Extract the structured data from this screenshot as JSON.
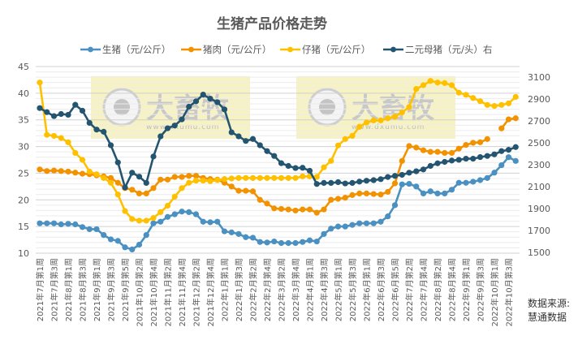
{
  "chart_data": {
    "type": "line",
    "title": "生猪产品价格走势",
    "source_label": "数据来源:",
    "source_name": "慧通数据",
    "watermark": {
      "name": "大畜牧",
      "url": "www.dxumu.com"
    },
    "x_tick_labels": [
      "2021年7月第1周",
      "2021年7月第3周",
      "2021年8月第1周",
      "2021年8月第3周",
      "2021年9月第1周",
      "2021年9月第3周",
      "2021年9月第5周",
      "2021年10月第2周",
      "2021年10月第4周",
      "2021年11月第2周",
      "2021年11月第4周",
      "2021年12月第2周",
      "2021年12月第4周",
      "2022年1月第1周",
      "2022年1月第3周",
      "2022年2月第2周",
      "2022年2月第4周",
      "2022年3月第2周",
      "2022年3月第4周",
      "2022年4月第1周",
      "2022年4月第3周",
      "2022年5月第1周",
      "2022年5月第3周",
      "2022年6月第1周",
      "2022年6月第3周",
      "2022年6月第5周",
      "2022年7月第2周",
      "2022年7月第4周",
      "2022年8月第2周",
      "2022年8月第4周",
      "2022年9月第1周",
      "2022年9月第3周",
      "2022年10月第1周",
      "2022年10月第3周"
    ],
    "y_left": {
      "min": 10,
      "max": 45,
      "step": 5
    },
    "y_right": {
      "min": 1500,
      "max": 3100,
      "step": 200
    },
    "grid": true,
    "legend_position": "top",
    "series": [
      {
        "name": "生猪（元/公斤）",
        "axis": "left",
        "color": "#4a90c0",
        "values": [
          15.6,
          15.6,
          15.6,
          15.4,
          15.5,
          15.4,
          14.9,
          14.5,
          14.5,
          13.4,
          12.6,
          12.3,
          11.1,
          10.7,
          11.6,
          13.4,
          15.6,
          15.9,
          16.8,
          17.3,
          17.8,
          17.7,
          17.3,
          15.9,
          15.8,
          15.9,
          14.1,
          13.9,
          13.6,
          13.0,
          12.9,
          12.1,
          12.0,
          12.2,
          11.9,
          11.9,
          11.9,
          12.1,
          12.4,
          12.2,
          13.6,
          14.6,
          15.0,
          15.0,
          15.3,
          15.6,
          15.6,
          15.6,
          15.9,
          16.9,
          19.0,
          22.9,
          23.0,
          22.5,
          21.2,
          21.6,
          21.2,
          21.2,
          21.9,
          23.2,
          23.2,
          23.4,
          23.7,
          24.1,
          25.1,
          26.5,
          28.0,
          27.3
        ]
      },
      {
        "name": "猪肉（元/公斤）",
        "axis": "left",
        "color": "#f39200",
        "values": [
          25.7,
          25.4,
          25.5,
          25.4,
          25.3,
          25.1,
          24.9,
          24.8,
          24.6,
          24.4,
          24.1,
          23.2,
          22.2,
          21.9,
          21.2,
          21.2,
          22.2,
          23.8,
          23.8,
          24.3,
          24.3,
          24.5,
          24.5,
          24.1,
          23.9,
          23.8,
          23.2,
          22.5,
          21.7,
          21.7,
          21.6,
          20.0,
          19.3,
          18.4,
          18.3,
          18.2,
          18.0,
          18.2,
          18.2,
          17.6,
          18.2,
          20.0,
          20.2,
          20.4,
          20.9,
          21.2,
          21.2,
          21.1,
          21.0,
          21.5,
          23.1,
          27.3,
          30.1,
          29.8,
          29.3,
          29.0,
          29.0,
          28.8,
          28.8,
          29.6,
          30.3,
          30.7,
          30.8,
          31.4,
          null,
          33.4,
          35.1,
          35.3
        ]
      },
      {
        "name": "仔猪（元/公斤）",
        "axis": "left",
        "color": "#ffc000",
        "values": [
          42.0,
          32.2,
          32.0,
          31.6,
          30.8,
          28.8,
          27.5,
          25.3,
          24.8,
          24.1,
          23.2,
          21.0,
          17.9,
          16.4,
          16.1,
          16.1,
          16.6,
          17.7,
          18.9,
          20.6,
          22.2,
          23.2,
          23.6,
          23.6,
          23.5,
          23.7,
          23.9,
          24.0,
          24.1,
          24.1,
          24.1,
          24.1,
          24.1,
          24.1,
          24.1,
          24.1,
          24.1,
          24.4,
          24.4,
          24.3,
          26.1,
          27.3,
          30.2,
          31.4,
          32.0,
          33.7,
          34.5,
          34.9,
          34.9,
          35.3,
          35.6,
          36.4,
          37.4,
          40.8,
          41.5,
          42.3,
          42.0,
          41.9,
          41.5,
          40.1,
          39.7,
          39.1,
          38.5,
          37.8,
          37.6,
          37.8,
          38.1,
          39.3
        ]
      },
      {
        "name": "二元母猪（元/头）右",
        "axis": "right",
        "color": "#245570",
        "values": [
          2817,
          2780,
          2744,
          2763,
          2756,
          2847,
          2793,
          2682,
          2621,
          2601,
          2478,
          2321,
          2092,
          2227,
          2191,
          2134,
          2375,
          2559,
          2633,
          2658,
          2714,
          2830,
          2879,
          2940,
          2903,
          2871,
          2805,
          2596,
          2559,
          2517,
          2535,
          2478,
          2424,
          2380,
          2314,
          2289,
          2270,
          2272,
          2245,
          2124,
          2134,
          2134,
          2141,
          2129,
          2134,
          2146,
          2154,
          2159,
          2168,
          2188,
          2198,
          2208,
          2227,
          2240,
          2257,
          2289,
          2313,
          2326,
          2338,
          2345,
          2355,
          2355,
          2370,
          2380,
          2395,
          2424,
          2436,
          2461
        ]
      }
    ]
  }
}
